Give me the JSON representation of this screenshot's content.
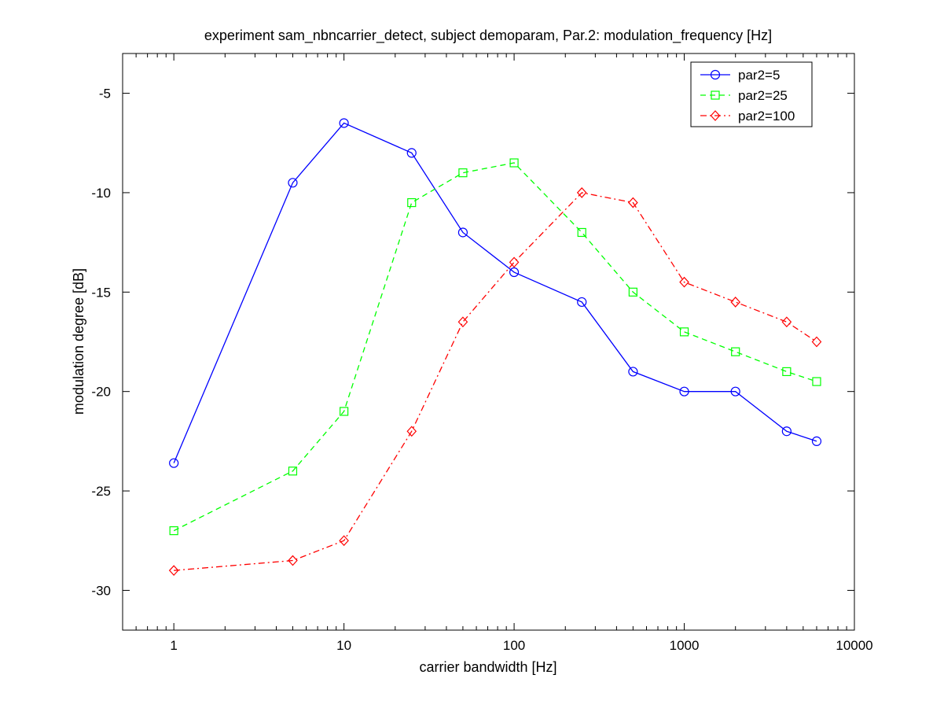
{
  "chart_data": {
    "type": "line",
    "title": "experiment sam_nbncarrier_detect, subject demoparam,  Par.2: modulation_frequency [Hz]",
    "xlabel": "carrier bandwidth [Hz]",
    "ylabel": "modulation degree [dB]",
    "xscale": "log",
    "xlim": [
      0.5,
      10000
    ],
    "ylim": [
      -32,
      -3
    ],
    "xticks": [
      1,
      10,
      100,
      1000,
      10000
    ],
    "xtick_labels": [
      "1",
      "10",
      "100",
      "1000",
      "10000"
    ],
    "yticks": [
      -30,
      -25,
      -20,
      -15,
      -10,
      -5
    ],
    "ytick_labels": [
      "-30",
      "-25",
      "-20",
      "-15",
      "-10",
      "-5"
    ],
    "grid": false,
    "legend_position": "top-right",
    "x": [
      1,
      5,
      10,
      25,
      50,
      100,
      250,
      500,
      1000,
      2000,
      4000,
      6000
    ],
    "series": [
      {
        "name": "par2=5",
        "color": "#0000ff",
        "marker": "circle",
        "linestyle": "solid",
        "values": [
          -23.6,
          -9.5,
          -6.5,
          -8,
          -12,
          -14,
          -15.5,
          -19,
          -20,
          -20,
          -22,
          -22.5
        ]
      },
      {
        "name": "par2=25",
        "color": "#00ff00",
        "marker": "square",
        "linestyle": "dashed",
        "values": [
          -27,
          -24,
          -21,
          -10.5,
          -9,
          -8.5,
          -12,
          -15,
          -17,
          -18,
          -19,
          -19.5
        ]
      },
      {
        "name": "par2=100",
        "color": "#ff0000",
        "marker": "diamond",
        "linestyle": "dashdot",
        "values": [
          -29,
          -28.5,
          -27.5,
          -22,
          -16.5,
          -13.5,
          -10,
          -10.5,
          -14.5,
          -15.5,
          -16.5,
          -17.5
        ]
      }
    ]
  }
}
